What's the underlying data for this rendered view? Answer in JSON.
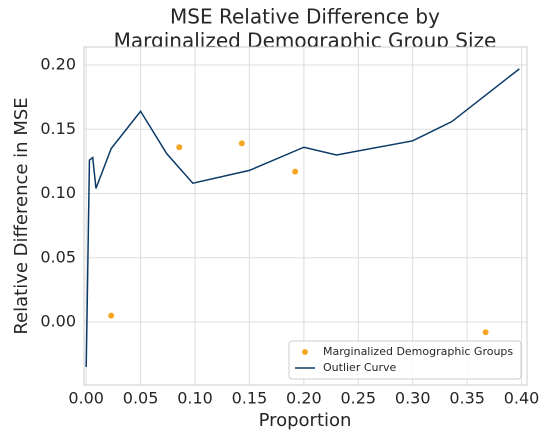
{
  "chart_data": {
    "type": "line",
    "title": [
      "MSE Relative Difference by",
      "Marginalized Demographic Group Size"
    ],
    "x_label": "Proportion",
    "y_label": "Relative Difference in MSE",
    "xlim": [
      -0.002,
      0.405
    ],
    "ylim": [
      -0.049,
      0.214
    ],
    "xticks": [
      {
        "value": 0,
        "label": "0.00"
      },
      {
        "value": 0.05,
        "label": "0.05"
      },
      {
        "value": 0.1,
        "label": "0.10"
      },
      {
        "value": 0.15,
        "label": "0.15"
      },
      {
        "value": 0.2,
        "label": "0.20"
      },
      {
        "value": 0.25,
        "label": "0.25"
      },
      {
        "value": 0.3,
        "label": "0.30"
      },
      {
        "value": 0.35,
        "label": "0.35"
      },
      {
        "value": 0.4,
        "label": "0.40"
      }
    ],
    "yticks": [
      {
        "value": 0,
        "label": "0.00"
      },
      {
        "value": 0.05,
        "label": "0.05"
      },
      {
        "value": 0.1,
        "label": "0.10"
      },
      {
        "value": 0.15,
        "label": "0.15"
      },
      {
        "value": 0.2,
        "label": "0.20"
      }
    ],
    "grid": true,
    "legend": "lower right",
    "series": [
      {
        "name": "Marginalized Demographic Groups",
        "type": "scatter",
        "color": "#f5a623",
        "x": [
          0.023,
          0.0855,
          0.143,
          0.192,
          0.367
        ],
        "values": [
          0.005,
          0.136,
          0.139,
          0.117,
          -0.008
        ]
      },
      {
        "name": "Outlier Curve",
        "type": "line",
        "color": "#0b3a66",
        "x": [
          0,
          0.001,
          0.003,
          0.006,
          0.009,
          0.023,
          0.05,
          0.074,
          0.098,
          0.15,
          0.2,
          0.23,
          0.3,
          0.336,
          0.398
        ],
        "values": [
          -0.035,
          0.017,
          0.126,
          0.128,
          0.104,
          0.135,
          0.164,
          0.131,
          0.108,
          0.118,
          0.136,
          0.13,
          0.141,
          0.156,
          0.197
        ]
      }
    ]
  }
}
